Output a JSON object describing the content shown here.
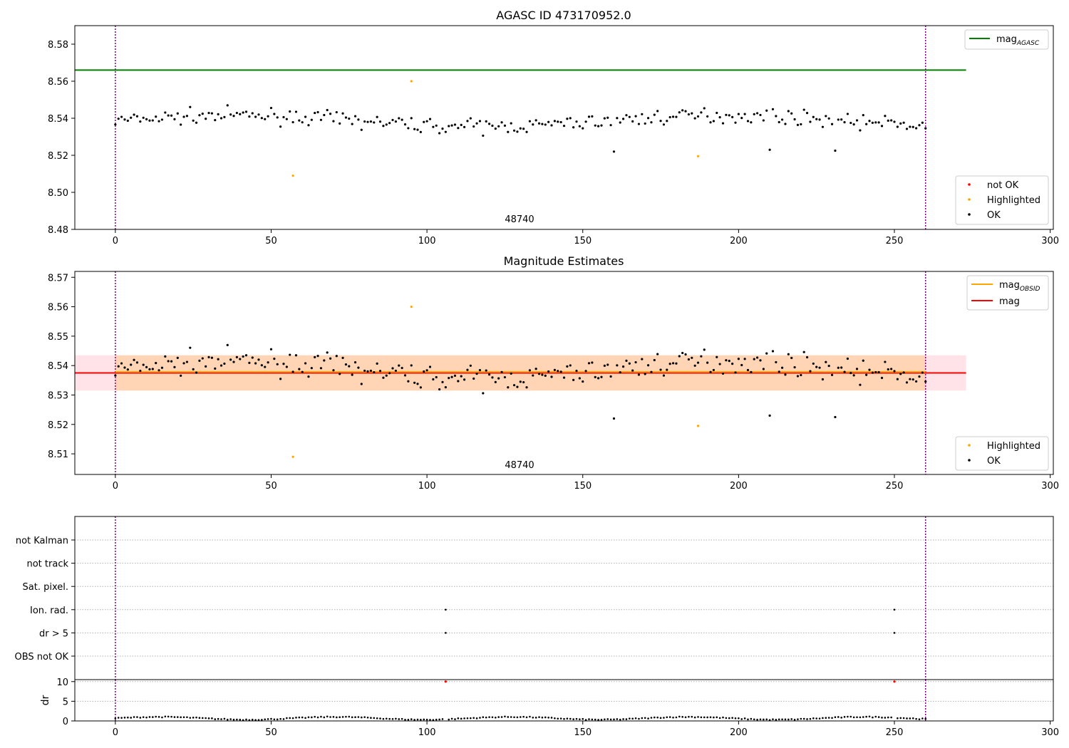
{
  "chart_data": [
    {
      "type": "scatter",
      "title": "AGASC ID 473170952.0",
      "xlim": [
        -13,
        301
      ],
      "ylim": [
        8.48,
        8.59
      ],
      "xticks": [
        0,
        50,
        100,
        150,
        200,
        250,
        300
      ],
      "yticks": [
        8.48,
        8.5,
        8.52,
        8.54,
        8.56,
        8.58
      ],
      "ytick_decimals": 2,
      "obsid_label": "48740",
      "vlines": [
        0,
        260
      ],
      "mag_agasc": 8.566,
      "mag_agasc_xrange": [
        -13,
        273
      ],
      "legend_top": {
        "label": "mag",
        "sub": "AGASC",
        "color": "#008000"
      },
      "legend_bottom": [
        {
          "label": "not OK",
          "color": "#ff0000"
        },
        {
          "label": "Highlighted",
          "color": "#ffa500"
        },
        {
          "label": "OK",
          "color": "#000000"
        }
      ],
      "highlighted_points": [
        [
          57,
          8.509
        ],
        [
          95,
          8.56
        ],
        [
          187,
          8.5195
        ]
      ],
      "grid": false
    },
    {
      "type": "scatter",
      "title": "Magnitude Estimates",
      "xlim": [
        -13,
        301
      ],
      "ylim": [
        8.503,
        8.572
      ],
      "xticks": [
        0,
        50,
        100,
        150,
        200,
        250,
        300
      ],
      "yticks": [
        8.51,
        8.52,
        8.53,
        8.54,
        8.55,
        8.56,
        8.57
      ],
      "ytick_decimals": 2,
      "obsid_label": "48740",
      "vlines": [
        0,
        260
      ],
      "mag": 8.5375,
      "mag_band": [
        8.5315,
        8.5435
      ],
      "mag_xrange": [
        -13,
        273
      ],
      "mag_obsid": 8.5375,
      "mag_obsid_band": [
        8.5315,
        8.5435
      ],
      "mag_obsid_xrange": [
        0,
        260
      ],
      "legend_top": [
        {
          "label": "mag",
          "sub": "OBSID",
          "color": "#ffa500"
        },
        {
          "label": "mag",
          "sub": "",
          "color": "#ff0000"
        }
      ],
      "legend_bottom": [
        {
          "label": "Highlighted",
          "color": "#ffa500"
        },
        {
          "label": "OK",
          "color": "#000000"
        }
      ],
      "highlighted_points": [
        [
          57,
          8.509
        ],
        [
          95,
          8.56
        ],
        [
          187,
          8.5195
        ]
      ],
      "grid": false
    },
    {
      "type": "scatter",
      "title": "",
      "xlim": [
        -13,
        301
      ],
      "vlines": [
        0,
        260
      ],
      "flag_rows": [
        "not Kalman",
        "not track",
        "Sat. pixel.",
        "Ion. rad.",
        "dr > 5",
        "OBS not OK"
      ],
      "flag_points": [
        {
          "row": "Ion. rad.",
          "x": [
            106,
            250
          ]
        },
        {
          "row": "dr > 5",
          "x": [
            106,
            250
          ]
        }
      ],
      "grid": true
    },
    {
      "type": "scatter",
      "title": "",
      "ylabel": "dr",
      "xlim": [
        -13,
        301
      ],
      "ylim": [
        0,
        10.5
      ],
      "xticks": [
        0,
        50,
        100,
        150,
        200,
        250,
        300
      ],
      "yticks": [
        0,
        5,
        10
      ],
      "vlines": [
        0,
        260
      ],
      "dr_outliers": [
        [
          106,
          10
        ],
        [
          250,
          10
        ]
      ],
      "grid": true
    }
  ]
}
